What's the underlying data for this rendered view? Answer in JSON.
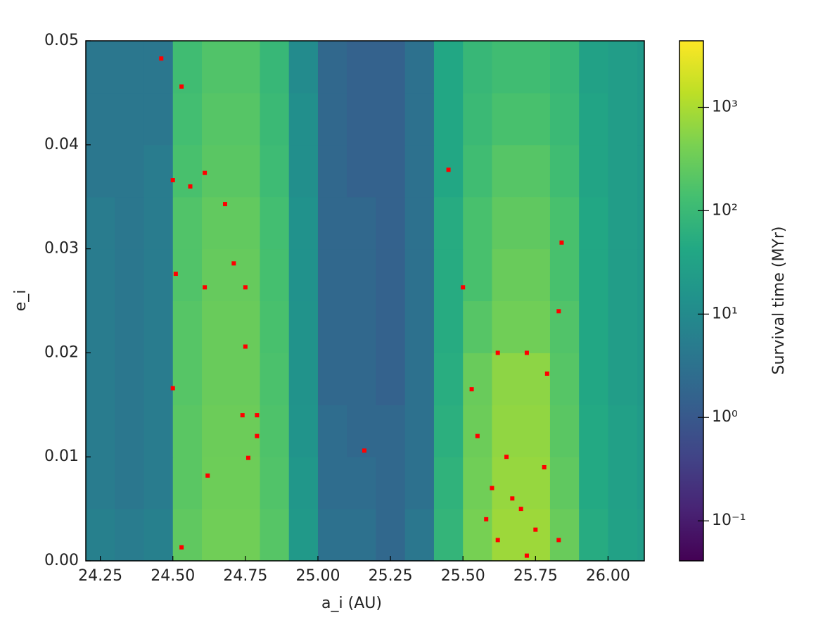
{
  "chart_data": {
    "type": "heatmap",
    "x_label": "a_i (AU)",
    "y_label": "e_i",
    "colorbar_label": "Survival time (MYr)",
    "colormap": "viridis",
    "color_scale": "log",
    "x_edges": [
      24.2,
      24.3,
      24.4,
      24.5,
      24.6,
      24.7,
      24.8,
      24.9,
      25.0,
      25.1,
      25.2,
      25.3,
      25.4,
      25.5,
      25.6,
      25.7,
      25.8,
      25.9,
      26.0,
      26.1,
      26.125
    ],
    "y_edges": [
      0,
      0.005,
      0.01,
      0.015,
      0.02,
      0.025,
      0.03,
      0.035,
      0.04,
      0.045,
      0.05
    ],
    "values": [
      [
        6,
        5,
        6,
        250,
        350,
        350,
        200,
        20,
        3,
        3,
        2,
        4,
        80,
        400,
        800,
        800,
        300,
        50,
        30,
        25
      ],
      [
        5,
        4,
        5,
        220,
        330,
        330,
        180,
        18,
        2.5,
        2.5,
        2,
        3,
        70,
        350,
        700,
        700,
        250,
        45,
        28,
        22
      ],
      [
        5,
        4,
        5,
        220,
        320,
        320,
        170,
        16,
        2.5,
        2,
        2,
        3,
        60,
        320,
        650,
        650,
        220,
        45,
        28,
        22
      ],
      [
        5,
        4,
        5,
        200,
        300,
        300,
        160,
        15,
        2,
        2,
        1.5,
        3,
        55,
        300,
        600,
        600,
        200,
        40,
        25,
        20
      ],
      [
        5,
        4,
        5,
        200,
        300,
        300,
        150,
        15,
        2,
        2,
        1.5,
        3,
        50,
        200,
        350,
        350,
        180,
        40,
        25,
        20
      ],
      [
        5,
        4,
        5,
        180,
        280,
        280,
        140,
        14,
        2,
        2,
        1.5,
        3,
        50,
        150,
        300,
        300,
        150,
        40,
        25,
        20
      ],
      [
        5,
        4,
        5,
        180,
        260,
        260,
        130,
        14,
        2,
        2,
        1.5,
        3,
        50,
        150,
        250,
        250,
        150,
        40,
        25,
        20
      ],
      [
        4,
        4,
        5,
        150,
        220,
        220,
        110,
        12,
        2,
        1.5,
        1.5,
        3,
        40,
        120,
        200,
        200,
        120,
        35,
        25,
        20
      ],
      [
        4,
        4,
        4,
        130,
        200,
        200,
        100,
        12,
        2,
        1.5,
        1.5,
        3,
        40,
        100,
        150,
        150,
        100,
        35,
        25,
        20
      ],
      [
        4,
        4,
        4,
        120,
        180,
        180,
        90,
        10,
        2,
        1.5,
        1.5,
        3,
        40,
        90,
        120,
        120,
        90,
        30,
        25,
        20
      ]
    ],
    "highlight": {
      "color": "#ff0000",
      "x": [
        24.46,
        24.53,
        24.61,
        24.5,
        24.56,
        24.68,
        24.51,
        24.71,
        24.61,
        24.75,
        24.75,
        24.5,
        24.74,
        24.79,
        24.79,
        24.76,
        24.62,
        24.53,
        25.16,
        25.45,
        25.5,
        25.84,
        25.83,
        25.62,
        25.53,
        25.72,
        25.79,
        25.55,
        25.65,
        25.6,
        25.7,
        25.75,
        25.83,
        25.58,
        25.67,
        25.78,
        25.62,
        25.72
      ],
      "y": [
        0.0483,
        0.0456,
        0.0373,
        0.0366,
        0.036,
        0.0343,
        0.0276,
        0.0286,
        0.0263,
        0.0263,
        0.0206,
        0.0166,
        0.014,
        0.014,
        0.012,
        0.0099,
        0.0082,
        0.0013,
        0.0106,
        0.0376,
        0.0263,
        0.0306,
        0.024,
        0.02,
        0.0165,
        0.02,
        0.018,
        0.012,
        0.01,
        0.007,
        0.005,
        0.003,
        0.002,
        0.004,
        0.006,
        0.009,
        0.002,
        0.0005
      ]
    },
    "xlim": [
      24.2,
      26.125
    ],
    "ylim": [
      0,
      0.05
    ],
    "clim": [
      0.041,
      4400
    ],
    "xticks": [
      24.25,
      {
        "value": 24.5,
        "label": "24.50"
      },
      24.75,
      {
        "value": 25.0,
        "label": "25.00"
      },
      25.25,
      {
        "value": 25.5,
        "label": "25.50"
      },
      25.75,
      {
        "value": 26.0,
        "label": "26.00"
      }
    ],
    "yticks": [
      {
        "value": 0,
        "label": "0.00"
      },
      0.01,
      0.02,
      0.03,
      0.04,
      0.05
    ],
    "cticks": [
      {
        "value": 0.1,
        "label": "10⁻¹"
      },
      {
        "value": 1,
        "label": "10⁰"
      },
      {
        "value": 10,
        "label": "10¹"
      },
      {
        "value": 100,
        "label": "10²"
      },
      {
        "value": 1000,
        "label": "10³"
      }
    ]
  }
}
